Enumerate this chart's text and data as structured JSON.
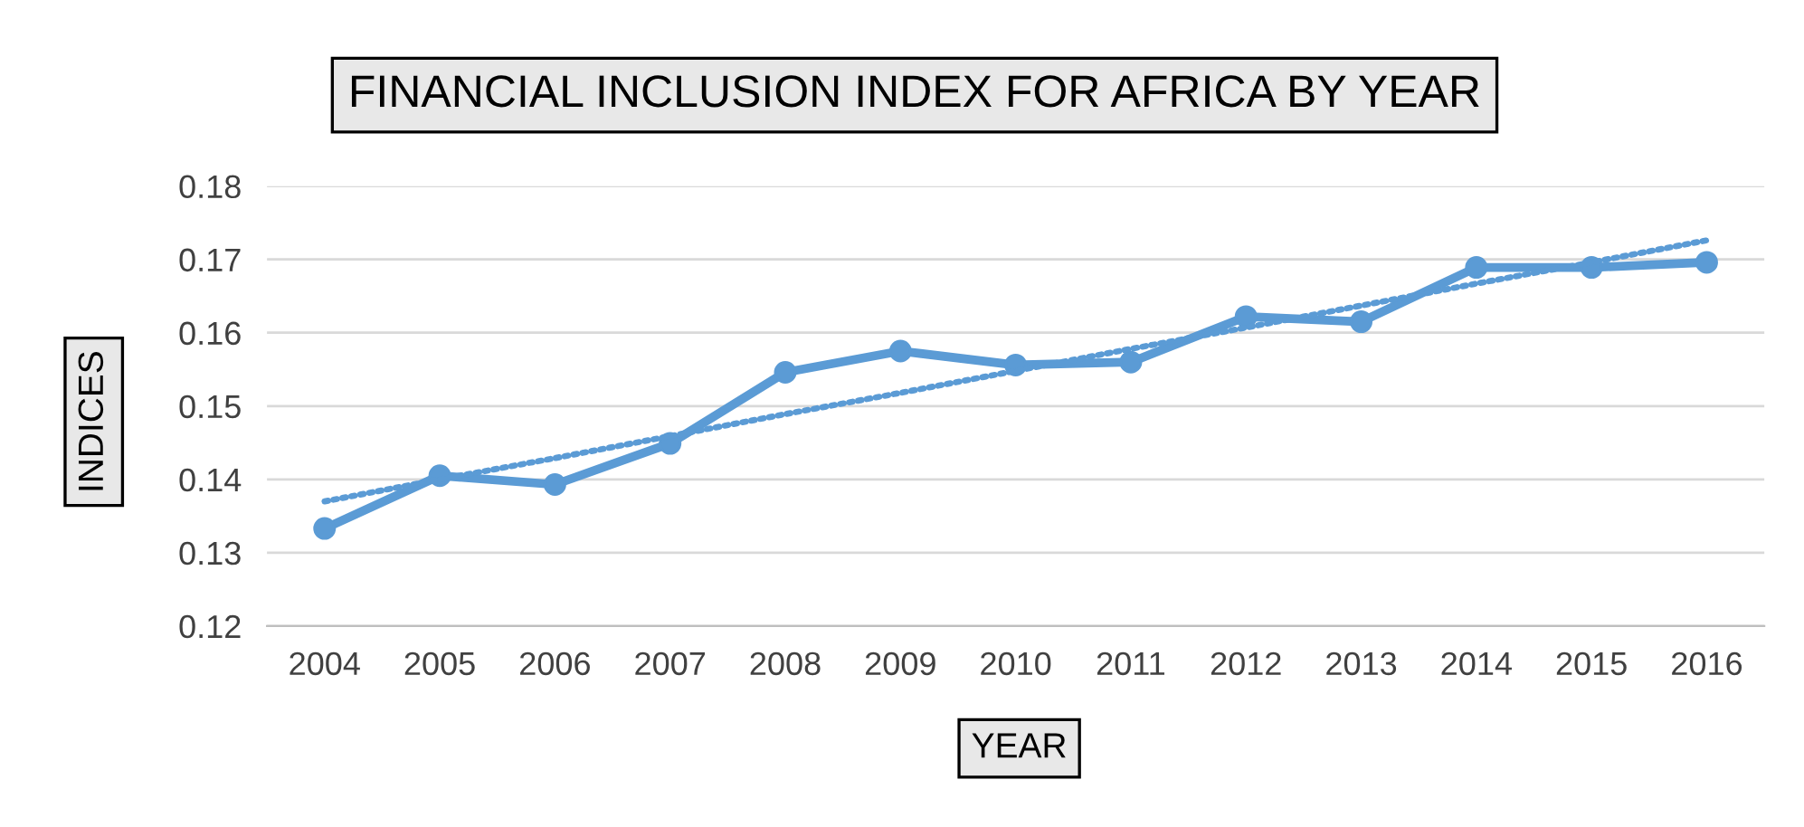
{
  "chart_data": {
    "type": "line",
    "title": "FINANCIAL INCLUSION INDEX FOR AFRICA BY YEAR",
    "xlabel": "YEAR",
    "ylabel": "INDICES",
    "categories": [
      "2004",
      "2005",
      "2006",
      "2007",
      "2008",
      "2009",
      "2010",
      "2011",
      "2012",
      "2013",
      "2014",
      "2015",
      "2016"
    ],
    "series": [
      {
        "color": "#5b9bd5",
        "marker": "circle",
        "line_style": "solid",
        "values": [
          0.1333,
          0.1405,
          0.1393,
          0.1449,
          0.1546,
          0.1575,
          0.1556,
          0.156,
          0.1622,
          0.1615,
          0.1689,
          0.1689,
          0.1696
        ]
      },
      {
        "type": "line",
        "color": "#5b9bd5",
        "marker": "none",
        "line_style": "dotted",
        "values": [
          0.137,
          0.14,
          0.1429,
          0.1459,
          0.1489,
          0.1518,
          0.1548,
          0.1578,
          0.1607,
          0.1637,
          0.1667,
          0.1696,
          0.1726
        ]
      }
    ],
    "ylim": [
      0.12,
      0.18
    ],
    "yticks": [
      0.12,
      0.13,
      0.14,
      0.15,
      0.16,
      0.17,
      0.18
    ],
    "grid": "y",
    "legend": false
  }
}
